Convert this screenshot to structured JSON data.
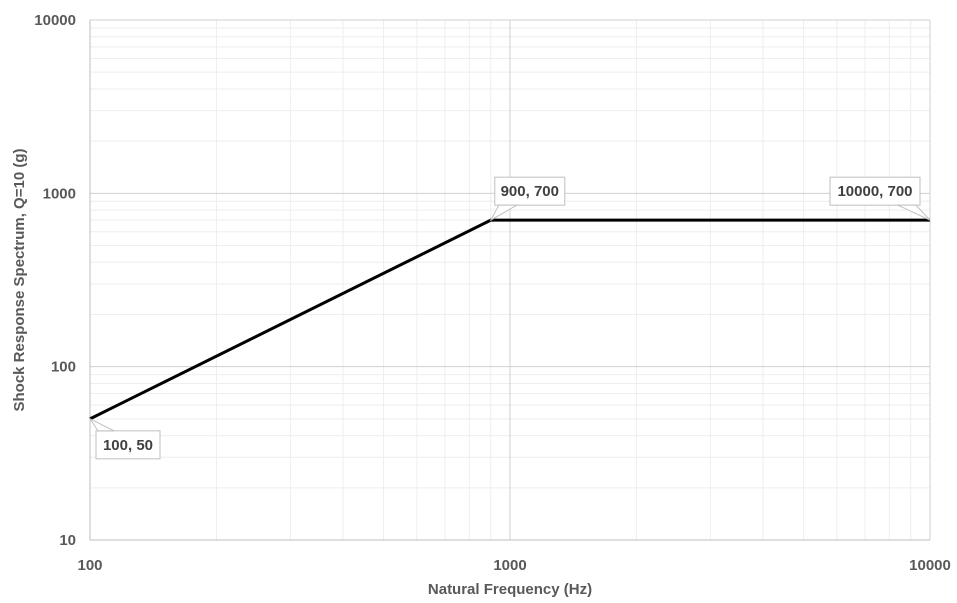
{
  "chart_data": {
    "type": "line",
    "x_scale": "log",
    "y_scale": "log",
    "xlim": [
      100,
      10000
    ],
    "ylim": [
      10,
      10000
    ],
    "xlabel": "Natural Frequency (Hz)",
    "ylabel": "Shock Response Spectrum, Q=10 (g)",
    "x_ticks": [
      "100",
      "1000",
      "10000"
    ],
    "y_ticks": [
      "10",
      "100",
      "1000",
      "10000"
    ],
    "grid": "major and minor",
    "legend": "none",
    "series": [
      {
        "x": [
          100,
          900,
          10000
        ],
        "y": [
          50,
          700,
          700
        ],
        "color": "#000000"
      }
    ],
    "annotations": [
      {
        "text": "100, 50",
        "x": 100,
        "y": 50
      },
      {
        "text": "900, 700",
        "x": 900,
        "y": 700
      },
      {
        "text": "10000, 700",
        "x": 10000,
        "y": 700
      }
    ]
  }
}
